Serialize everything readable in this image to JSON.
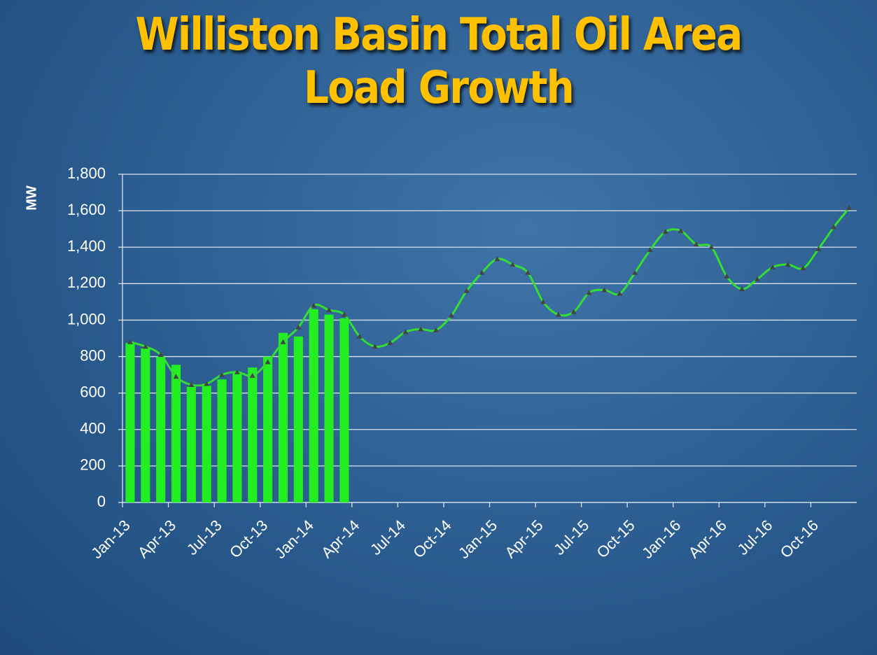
{
  "chart_data": {
    "type": "combo",
    "title": "Williston Basin Total Oil Area Load Growth",
    "y_label": "MW",
    "categories": [
      "Jan-13",
      null,
      null,
      "Apr-13",
      null,
      null,
      "Jul-13",
      null,
      null,
      "Oct-13",
      null,
      null,
      "Jan-14",
      null,
      null,
      "Apr-14",
      null,
      null,
      "Jul-14",
      null,
      null,
      "Oct-14",
      null,
      null,
      "Jan-15",
      null,
      null,
      "Apr-15",
      null,
      null,
      "Jul-15",
      null,
      null,
      "Oct-15",
      null,
      null,
      "Jan-16",
      null,
      null,
      "Apr-16",
      null,
      null,
      "Jul-16",
      null,
      null,
      "Oct-16",
      null,
      null
    ],
    "series": [
      {
        "type": "bar",
        "color": "#22ee22",
        "values": [
          875,
          845,
          800,
          755,
          635,
          640,
          675,
          710,
          740,
          800,
          930,
          910,
          1060,
          1030,
          1010,
          null,
          null,
          null,
          null,
          null,
          null,
          null,
          null,
          null,
          null,
          null,
          null,
          null,
          null,
          null,
          null,
          null,
          null,
          null,
          null,
          null,
          null,
          null,
          null,
          null,
          null,
          null,
          null,
          null,
          null,
          null,
          null,
          null
        ]
      },
      {
        "type": "line",
        "color": "#33dd33",
        "marker_color": "#444444",
        "values": [
          880,
          855,
          810,
          690,
          645,
          650,
          700,
          715,
          695,
          770,
          880,
          960,
          1080,
          1055,
          1030,
          910,
          855,
          875,
          935,
          950,
          945,
          1025,
          1160,
          1260,
          1335,
          1305,
          1260,
          1100,
          1030,
          1045,
          1150,
          1165,
          1145,
          1260,
          1385,
          1485,
          1490,
          1415,
          1400,
          1240,
          1170,
          1225,
          1290,
          1305,
          1285,
          1390,
          1510,
          1615
        ]
      }
    ],
    "ylim": [
      0,
      1800
    ],
    "yticks": [
      0,
      200,
      400,
      600,
      800,
      {
        "value": 1000,
        "label": "1,000"
      },
      {
        "value": 1200,
        "label": "1,200"
      },
      {
        "value": 1400,
        "label": "1,400"
      },
      {
        "value": 1600,
        "label": "1,600"
      },
      {
        "value": 1800,
        "label": "1,800"
      }
    ],
    "grid": true
  }
}
